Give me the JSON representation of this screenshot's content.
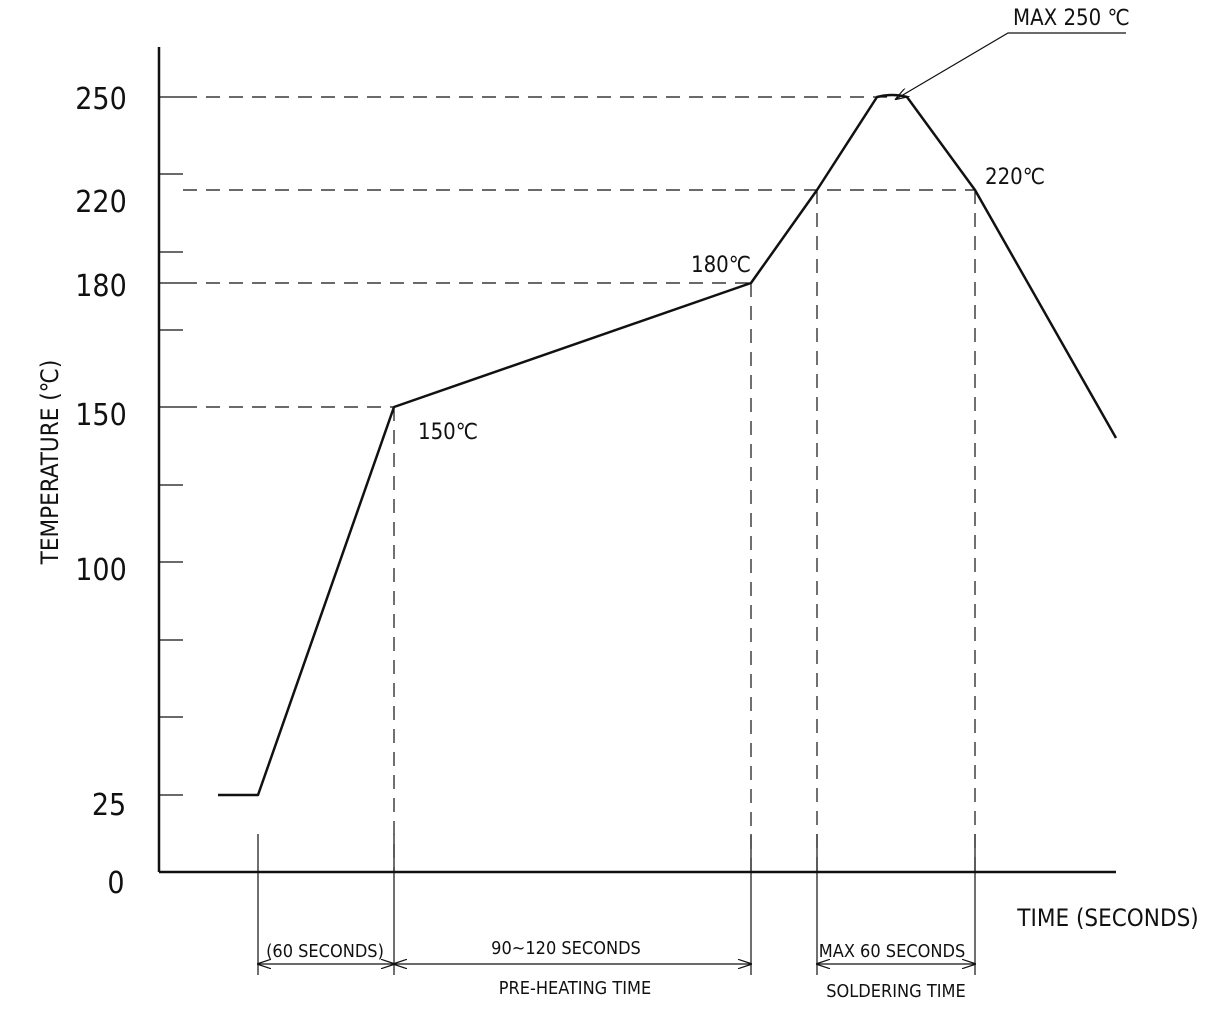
{
  "chart_data": {
    "type": "line",
    "title": "",
    "xlabel": "TIME (SECONDS)",
    "ylabel": "TEMPERATURE (℃)",
    "y_ticks": [
      "0",
      "25",
      "100",
      "150",
      "180",
      "220",
      "250"
    ],
    "ylim": [
      0,
      250
    ],
    "series": [
      {
        "temps": [
          25,
          25,
          150,
          180,
          220,
          250,
          250,
          220,
          140
        ]
      }
    ],
    "annotations": {
      "peak": "MAX 250 ℃",
      "t220": "220℃",
      "t180": "180℃",
      "t150": "150℃"
    },
    "time_segments": [
      {
        "label": "(60 SECONDS)",
        "sub": ""
      },
      {
        "label": "90~120 SECONDS",
        "sub": "PRE-HEATING TIME"
      },
      {
        "label": "MAX 60 SECONDS",
        "sub": "SOLDERING TIME"
      }
    ],
    "grid": false,
    "legend": "none"
  },
  "colors": {
    "line": "#111111",
    "text": "#111111"
  }
}
